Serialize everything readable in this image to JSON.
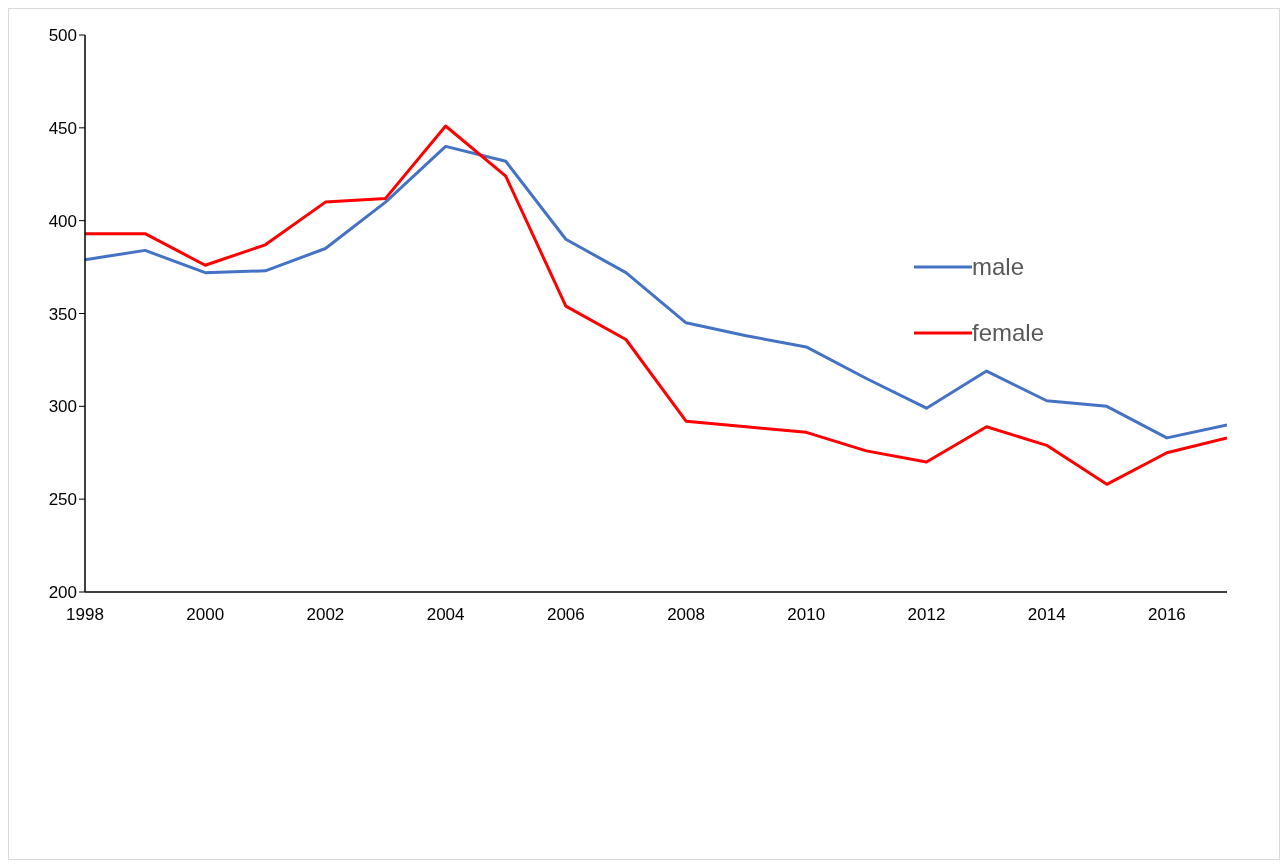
{
  "chart_data": {
    "type": "line",
    "x": [
      1998,
      1999,
      2000,
      2001,
      2002,
      2003,
      2004,
      2005,
      2006,
      2007,
      2008,
      2009,
      2010,
      2011,
      2012,
      2013,
      2014,
      2015,
      2016,
      2017
    ],
    "series": [
      {
        "name": "male",
        "color": "#4472c4",
        "values": [
          379,
          384,
          372,
          373,
          385,
          410,
          440,
          432,
          390,
          372,
          345,
          338,
          332,
          315,
          299,
          319,
          303,
          300,
          283,
          290
        ]
      },
      {
        "name": "female",
        "color": "#ff0000",
        "values": [
          393,
          393,
          376,
          387,
          410,
          412,
          451,
          424,
          354,
          336,
          292,
          289,
          286,
          276,
          270,
          289,
          279,
          258,
          275,
          283
        ]
      }
    ],
    "xlim": [
      1998,
      2017
    ],
    "xticks": [
      1998,
      2000,
      2002,
      2004,
      2006,
      2008,
      2010,
      2012,
      2014,
      2016
    ],
    "ylim": [
      200,
      500
    ],
    "yticks": [
      200,
      250,
      300,
      350,
      400,
      450,
      500
    ],
    "grid": false,
    "legend": "right",
    "marker": "none",
    "line_style": "solid"
  }
}
